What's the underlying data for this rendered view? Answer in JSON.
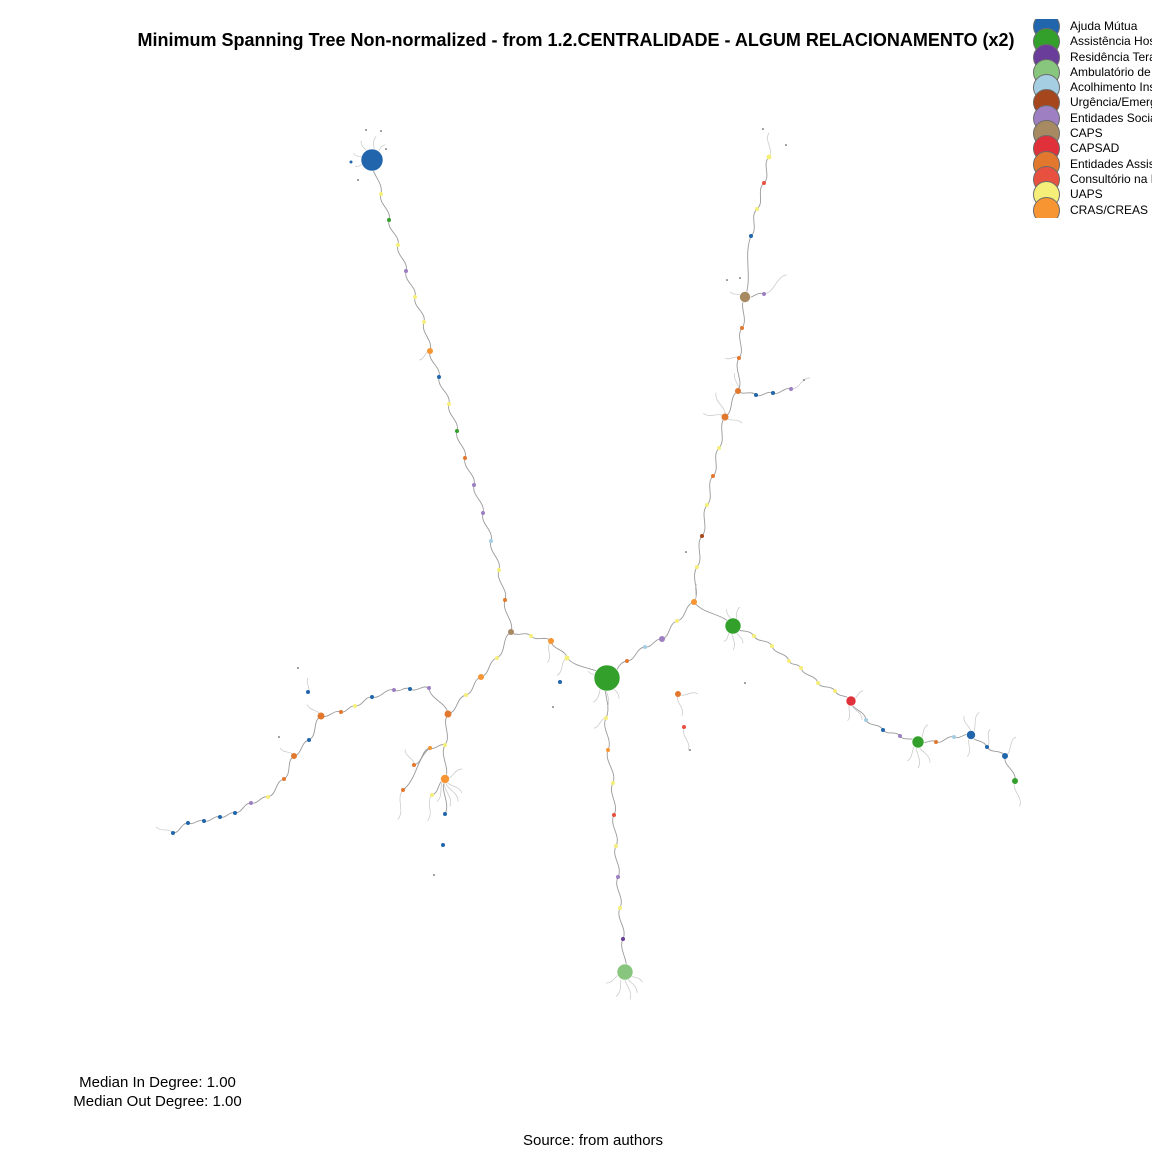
{
  "chart_data": {
    "type": "network",
    "title": "Minimum Spanning Tree Non-normalized - from 1.2.CENTRALIDADE - ALGUM RELACIONAMENTO (x2)",
    "layout_kind": "radial tree",
    "legend_placement": "top-right",
    "legend": [
      {
        "label": "Ajuda Mútua",
        "color": "#2166ac"
      },
      {
        "label": "Assistência Hospitalar",
        "color": "#33a02c"
      },
      {
        "label": "Residência Terapêutica",
        "color": "#6a3d9a"
      },
      {
        "label": "Ambulatório de Saúde Mental",
        "color": "#88c57d"
      },
      {
        "label": "Acolhimento Institucional",
        "color": "#a6cee3"
      },
      {
        "label": "Urgência/Emergência",
        "color": "#a6461c"
      },
      {
        "label": "Entidades Sociais",
        "color": "#9e7fc2"
      },
      {
        "label": "CAPS",
        "color": "#a88a62"
      },
      {
        "label": "CAPSAD",
        "color": "#e0303a"
      },
      {
        "label": "Entidades Assistenciais",
        "color": "#e2782e"
      },
      {
        "label": "Consultório na Rua",
        "color": "#e8513f"
      },
      {
        "label": "UAPS",
        "color": "#f5ef7a"
      },
      {
        "label": "CRAS/CREAS",
        "color": "#f79533"
      }
    ],
    "statistics": {
      "median_in_degree_label": "Median In Degree: 1.00",
      "median_out_degree_label": "Median Out Degree: 1.00",
      "median_in_degree": 1.0,
      "median_out_degree": 1.0
    },
    "source": "Source: from authors"
  }
}
